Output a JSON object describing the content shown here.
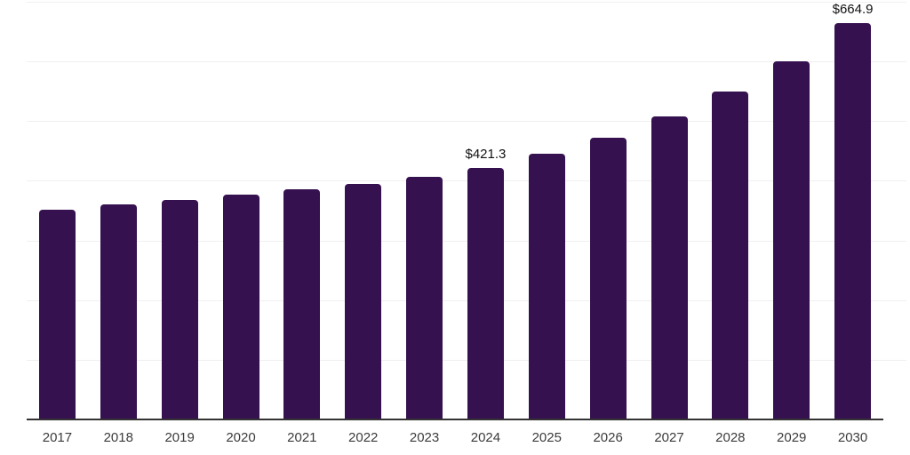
{
  "chart_data": {
    "type": "bar",
    "title": "",
    "xlabel": "",
    "ylabel": "",
    "categories": [
      "2017",
      "2018",
      "2019",
      "2020",
      "2021",
      "2022",
      "2023",
      "2024",
      "2025",
      "2026",
      "2027",
      "2028",
      "2029",
      "2030"
    ],
    "values": [
      352.0,
      360.0,
      368.5,
      376.6,
      385.1,
      395.0,
      406.4,
      421.3,
      444.6,
      472.8,
      507.9,
      550.0,
      600.5,
      664.9
    ],
    "data_labels": [
      "",
      "",
      "",
      "",
      "",
      "",
      "",
      "$421.3",
      "",
      "",
      "",
      "",
      "",
      "$664.9"
    ],
    "ylim": [
      0,
      700
    ],
    "grid_step": 100,
    "grid": true,
    "legend": "none",
    "colors": {
      "bar": "#361150",
      "gridline": "#f0f0f0",
      "axis_line": "#333333",
      "tick_label": "#3c3c3c",
      "data_label": "#111111",
      "background": "#ffffff"
    }
  }
}
